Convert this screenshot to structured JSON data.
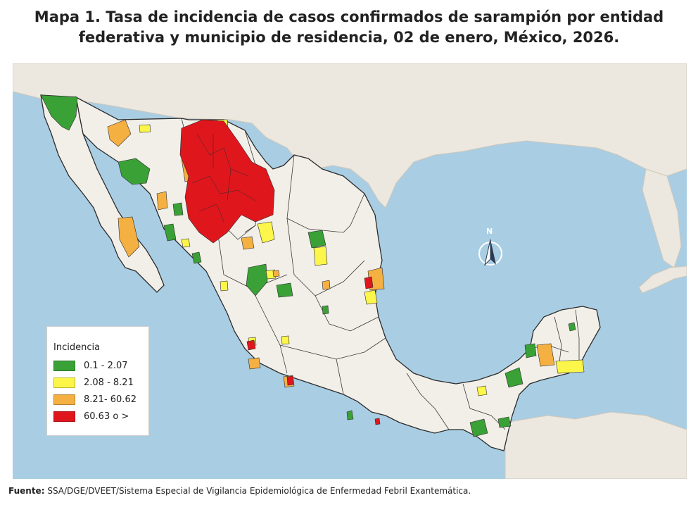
{
  "title": {
    "line1": "Mapa 1. Tasa de incidencia de casos confirmados de sarampión por entidad",
    "line2": "federativa y municipio de residencia, 02 de enero, México, 2026."
  },
  "legend": {
    "title": "Incidencia",
    "items": [
      {
        "label": "0.1 - 2.07",
        "color": "#3aa136"
      },
      {
        "label": "2.08 - 8.21",
        "color": "#fbf649"
      },
      {
        "label": "8.21- 60.62",
        "color": "#f5b042"
      },
      {
        "label": "60.63 o >",
        "color": "#e0161d"
      }
    ]
  },
  "compass": {
    "label": "N"
  },
  "source": {
    "prefix": "Fuente:",
    "text": "SSA/DGE/DVEET/Sistema Especial de Vigilancia Epidemiológica de Enfermedad Febril Exantemática."
  },
  "colors": {
    "ocean": "#a9cde3",
    "foreign_land": "#ece8df",
    "mexico_land": "#f2efe9",
    "border": "#2b2b2b"
  }
}
